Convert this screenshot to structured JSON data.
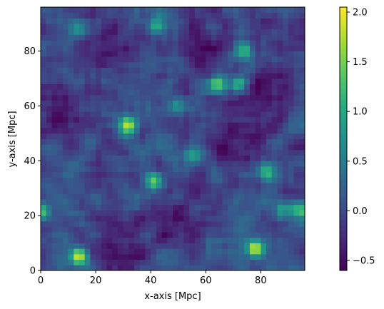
{
  "chart_data": [
    {
      "type": "heatmap",
      "title": "",
      "xlabel": "x-axis [Mpc]",
      "ylabel": "y-axis [Mpc]",
      "xlim": [
        0,
        96
      ],
      "ylim": [
        0,
        96
      ],
      "xticks": [
        0,
        20,
        40,
        60,
        80
      ],
      "yticks": [
        0,
        20,
        40,
        60,
        80
      ],
      "grid": false,
      "colormap": "viridis",
      "resolution": 48,
      "hotspots": [
        {
          "x": 14,
          "y": 5,
          "value": 2.0
        },
        {
          "x": 78,
          "y": 8,
          "value": 1.9
        },
        {
          "x": 41,
          "y": 33,
          "value": 1.6
        },
        {
          "x": 32,
          "y": 53,
          "value": 1.6
        },
        {
          "x": 72,
          "y": 68,
          "value": 1.5
        },
        {
          "x": 64,
          "y": 68,
          "value": 1.5
        },
        {
          "x": 74,
          "y": 80,
          "value": 1.3
        },
        {
          "x": 42,
          "y": 89,
          "value": 1.2
        },
        {
          "x": 94,
          "y": 22,
          "value": 1.3
        },
        {
          "x": 0,
          "y": 22,
          "value": 1.2
        },
        {
          "x": 82,
          "y": 36,
          "value": 1.1
        },
        {
          "x": 55,
          "y": 42,
          "value": 0.9
        },
        {
          "x": 14,
          "y": 88,
          "value": 0.9
        },
        {
          "x": 88,
          "y": 22,
          "value": 1.0
        },
        {
          "x": 50,
          "y": 60,
          "value": 0.7
        }
      ],
      "voids": [
        {
          "x": 10,
          "y": 58,
          "value": -0.6
        },
        {
          "x": 28,
          "y": 10,
          "value": -0.6
        },
        {
          "x": 82,
          "y": 64,
          "value": -0.6
        },
        {
          "x": 50,
          "y": 22,
          "value": -0.5
        },
        {
          "x": 26,
          "y": 82,
          "value": -0.5
        },
        {
          "x": 60,
          "y": 82,
          "value": -0.5
        },
        {
          "x": 72,
          "y": 46,
          "value": -0.5
        },
        {
          "x": 88,
          "y": 88,
          "value": -0.4
        }
      ]
    },
    {
      "type": "colorbar",
      "range": [
        -0.6,
        2.05
      ],
      "ticks": [
        -0.5,
        0.0,
        0.5,
        1.0,
        1.5,
        2.0
      ],
      "tick_labels": [
        "−0.5",
        "0.0",
        "0.5",
        "1.0",
        "1.5",
        "2.0"
      ],
      "colormap": "viridis"
    }
  ]
}
